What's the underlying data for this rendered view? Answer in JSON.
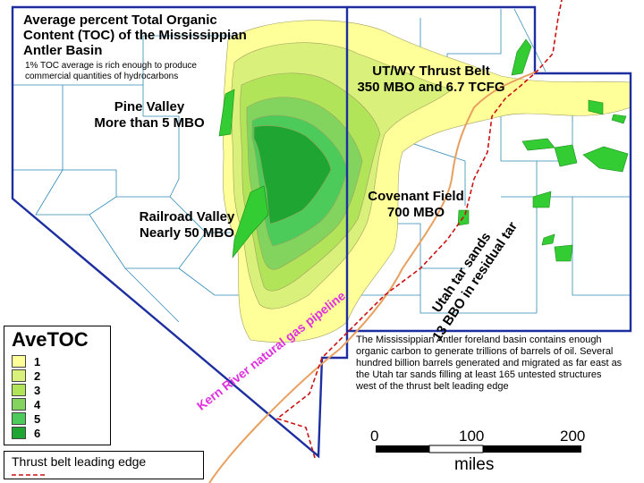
{
  "title": "Average percent Total Organic Content (TOC) of the Mississippian Antler Basin",
  "subtitle": "1% TOC average is rich enough to produce commercial quantities of hydrocarbons",
  "callouts": {
    "pine_valley": "Pine Valley\nMore than 5 MBO",
    "railroad_valley": "Railroad Valley\nNearly 50 MBO",
    "covenant_field": "Covenant Field\n700 MBO",
    "ut_wy_thrust": "UT/WY Thrust Belt\n350 MBO and 6.7 TCFG",
    "utah_tar_sands": "Utah tar sands\n13 BBO in residual tar"
  },
  "pipeline_label": "Kern River natural gas pipeline",
  "description": "The Mississippian Antler foreland basin contains enough organic carbon to generate trillions of barrels of oil.  Several hundred billion barrels generated and migrated as far east as the Utah tar sands filling at least 165 untested structures west of the thrust belt leading edge",
  "legend": {
    "title": "AveTOC",
    "classes": [
      {
        "label": "1",
        "color": "#ffff99"
      },
      {
        "label": "2",
        "color": "#d9f07a"
      },
      {
        "label": "3",
        "color": "#b2e45a"
      },
      {
        "label": "4",
        "color": "#82d45e"
      },
      {
        "label": "5",
        "color": "#4ccb5a"
      },
      {
        "label": "6",
        "color": "#1fa531"
      }
    ]
  },
  "thrust_legend": "Thrust belt leading edge",
  "scale": {
    "ticks": [
      "0",
      "100",
      "200"
    ],
    "unit": "miles"
  },
  "colors": {
    "boundary": "#1d2fa0",
    "county": "#2e8ab8",
    "pipeline": "#e8a060",
    "thrust": "#cc1111",
    "field": "#33cc33"
  }
}
